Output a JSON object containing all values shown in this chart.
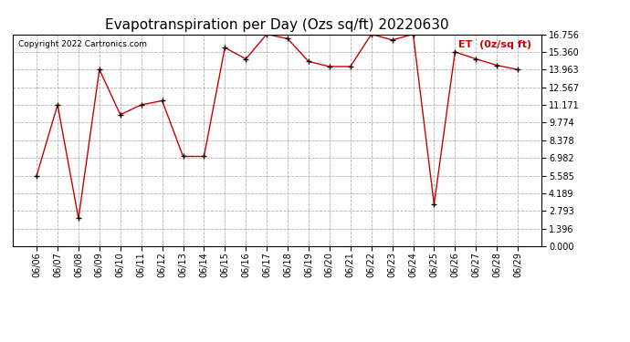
{
  "title": "Evapotranspiration per Day (Ozs sq/ft) 20220630",
  "copyright": "Copyright 2022 Cartronics.com",
  "legend_label": "ET  (0z/sq ft)",
  "x_labels": [
    "06/06",
    "06/07",
    "06/08",
    "06/09",
    "06/10",
    "06/11",
    "06/12",
    "06/13",
    "06/14",
    "06/15",
    "06/16",
    "06/17",
    "06/18",
    "06/19",
    "06/20",
    "06/21",
    "06/22",
    "06/23",
    "06/24",
    "06/25",
    "06/26",
    "06/27",
    "06/28",
    "06/29"
  ],
  "y_values": [
    5.585,
    11.171,
    2.2,
    13.963,
    10.4,
    11.171,
    11.5,
    7.1,
    7.1,
    15.7,
    14.8,
    16.756,
    16.4,
    14.6,
    14.2,
    14.2,
    16.756,
    16.3,
    16.756,
    3.3,
    15.36,
    14.8,
    14.3,
    13.963
  ],
  "line_color": "#cc0000",
  "marker_color": "#000000",
  "background_color": "#ffffff",
  "grid_color": "#aaaaaa",
  "yticks": [
    0.0,
    1.396,
    2.793,
    4.189,
    5.585,
    6.982,
    8.378,
    9.774,
    11.171,
    12.567,
    13.963,
    15.36,
    16.756
  ],
  "ylim": [
    0.0,
    16.756
  ],
  "title_fontsize": 11,
  "tick_fontsize": 7,
  "copyright_fontsize": 6.5,
  "legend_fontsize": 8
}
